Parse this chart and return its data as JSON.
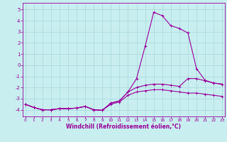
{
  "xlabel": "Windchill (Refroidissement éolien,°C)",
  "background_color": "#c8eef0",
  "grid_color": "#a8d8dc",
  "line_color": "#990099",
  "x_ticks": [
    0,
    1,
    2,
    3,
    4,
    5,
    6,
    7,
    8,
    9,
    10,
    11,
    12,
    13,
    14,
    15,
    16,
    17,
    18,
    19,
    20,
    21,
    22,
    23
  ],
  "y_ticks": [
    -4,
    -3,
    -2,
    -1,
    0,
    1,
    2,
    3,
    4,
    5
  ],
  "xlim": [
    -0.3,
    23.3
  ],
  "ylim": [
    -4.6,
    5.6
  ],
  "line1_x": [
    0,
    1,
    2,
    3,
    4,
    5,
    6,
    7,
    8,
    9,
    10,
    11,
    12,
    13,
    14,
    15,
    16,
    17,
    18,
    19,
    20,
    21,
    22,
    23
  ],
  "line1_y": [
    -3.5,
    -3.8,
    -4.0,
    -4.0,
    -3.9,
    -3.9,
    -3.85,
    -3.7,
    -4.0,
    -4.05,
    -3.4,
    -3.2,
    -2.4,
    -1.2,
    1.7,
    4.75,
    4.45,
    3.55,
    3.3,
    2.9,
    -0.3,
    -1.35,
    -1.6,
    -1.7
  ],
  "line2_x": [
    0,
    1,
    2,
    3,
    4,
    5,
    6,
    7,
    8,
    9,
    10,
    11,
    12,
    13,
    14,
    15,
    16,
    17,
    18,
    19,
    20,
    21,
    22,
    23
  ],
  "line2_y": [
    -3.5,
    -3.8,
    -4.0,
    -4.0,
    -3.9,
    -3.9,
    -3.85,
    -3.7,
    -4.0,
    -4.05,
    -3.4,
    -3.2,
    -2.4,
    -2.0,
    -1.8,
    -1.7,
    -1.7,
    -1.8,
    -1.9,
    -1.2,
    -1.2,
    -1.4,
    -1.6,
    -1.7
  ],
  "line3_x": [
    0,
    1,
    2,
    3,
    4,
    5,
    6,
    7,
    8,
    9,
    10,
    11,
    12,
    13,
    14,
    15,
    16,
    17,
    18,
    19,
    20,
    21,
    22,
    23
  ],
  "line3_y": [
    -3.5,
    -3.8,
    -4.0,
    -4.0,
    -3.9,
    -3.9,
    -3.85,
    -3.7,
    -4.0,
    -4.05,
    -3.5,
    -3.3,
    -2.7,
    -2.4,
    -2.3,
    -2.2,
    -2.2,
    -2.3,
    -2.4,
    -2.5,
    -2.5,
    -2.6,
    -2.7,
    -2.8
  ]
}
